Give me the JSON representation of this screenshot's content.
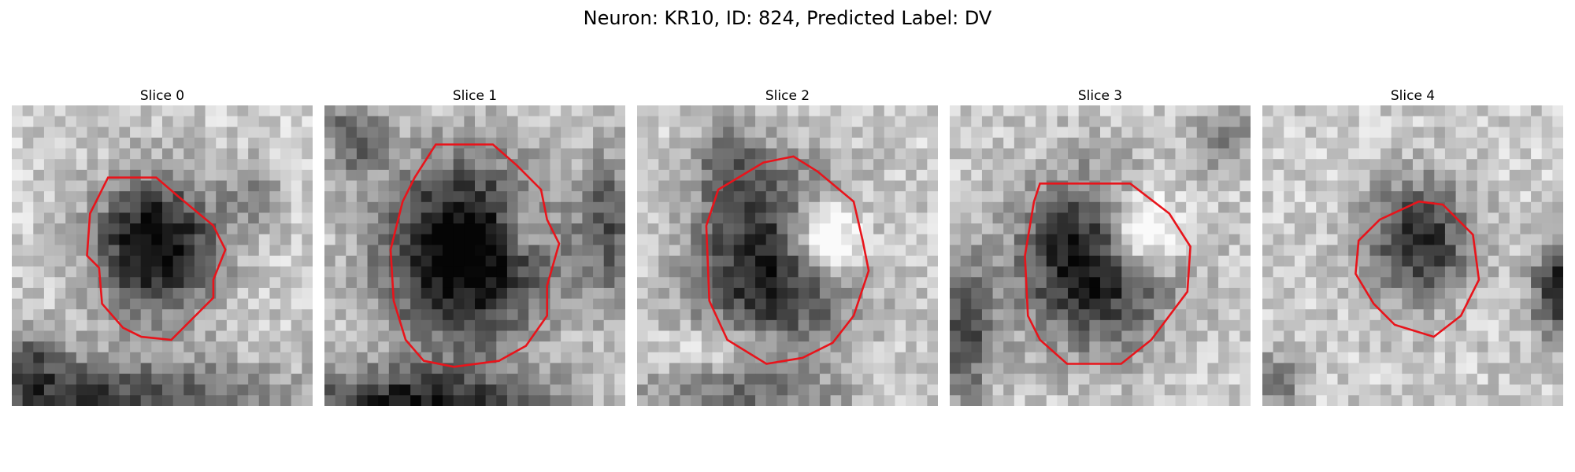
{
  "figure": {
    "title": "Neuron: KR10, ID: 824, Predicted Label: DV",
    "contour_color": "#e8141b"
  },
  "panels": [
    {
      "title": "Slice 0"
    },
    {
      "title": "Slice 1"
    },
    {
      "title": "Slice 2"
    },
    {
      "title": "Slice 3"
    },
    {
      "title": "Slice 4"
    }
  ]
}
